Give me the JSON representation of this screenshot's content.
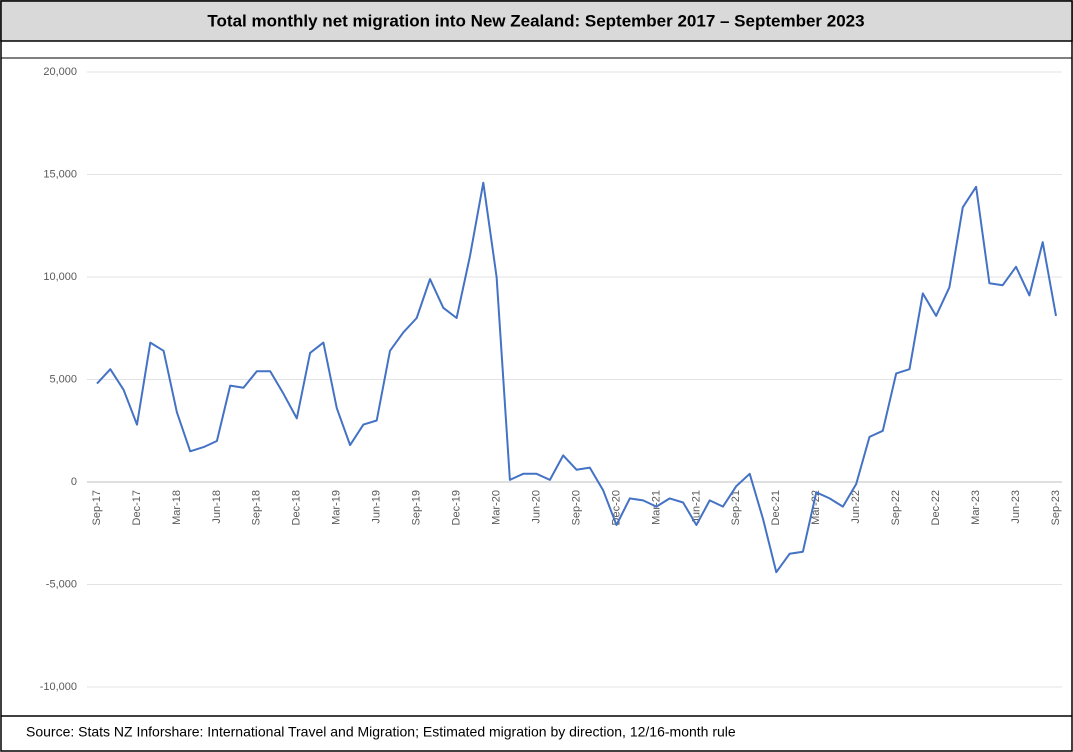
{
  "chart_data": {
    "type": "line",
    "title": "Total monthly net migration into New Zealand: September 2017 – September 2023",
    "source": "Source: Stats NZ Inforshare: International Travel and Migration; Estimated migration by direction, 12/16-month rule",
    "categories": [
      "Sep-17",
      null,
      null,
      "Dec-17",
      null,
      null,
      "Mar-18",
      null,
      null,
      "Jun-18",
      null,
      null,
      "Sep-18",
      null,
      null,
      "Dec-18",
      null,
      null,
      "Mar-19",
      null,
      null,
      "Jun-19",
      null,
      null,
      "Sep-19",
      null,
      null,
      "Dec-19",
      null,
      null,
      "Mar-20",
      null,
      null,
      "Jun-20",
      null,
      null,
      "Sep-20",
      null,
      null,
      "Dec-20",
      null,
      null,
      "Mar-21",
      null,
      null,
      "Jun-21",
      null,
      null,
      "Sep-21",
      null,
      null,
      "Dec-21",
      null,
      null,
      "Mar-22",
      null,
      null,
      "Jun-22",
      null,
      null,
      "Sep-22",
      null,
      null,
      "Dec-22",
      null,
      null,
      "Mar-23",
      null,
      null,
      "Jun-23",
      null,
      null,
      "Sep-23"
    ],
    "series": [
      {
        "color": "#4472c4",
        "values": [
          4800,
          5500,
          4500,
          2800,
          6800,
          6400,
          3400,
          1500,
          1700,
          2000,
          4700,
          4600,
          5400,
          5400,
          4300,
          3100,
          6300,
          6800,
          3600,
          1800,
          2800,
          3000,
          6400,
          7300,
          8000,
          9900,
          8500,
          8000,
          11000,
          14600,
          10000,
          100,
          400,
          400,
          100,
          1300,
          600,
          700,
          -400,
          -2100,
          -800,
          -900,
          -1200,
          -800,
          -1000,
          -2100,
          -900,
          -1200,
          -200,
          400,
          -1800,
          -4400,
          -3500,
          -3400,
          -500,
          -800,
          -1200,
          -100,
          2200,
          2500,
          5300,
          5500,
          9200,
          8100,
          9500,
          13400,
          14400,
          9700,
          9600,
          10500,
          9100,
          11700,
          8100
        ]
      }
    ],
    "ylim": [
      -10000,
      20000
    ],
    "yticks": [
      {
        "value": -10000,
        "label": "-10,000"
      },
      {
        "value": -5000,
        "label": "-5,000"
      },
      0,
      {
        "value": 5000,
        "label": "5,000"
      },
      {
        "value": 10000,
        "label": "10,000"
      },
      {
        "value": 15000,
        "label": "15,000"
      },
      {
        "value": 20000,
        "label": "20,000"
      }
    ],
    "grid": true
  }
}
